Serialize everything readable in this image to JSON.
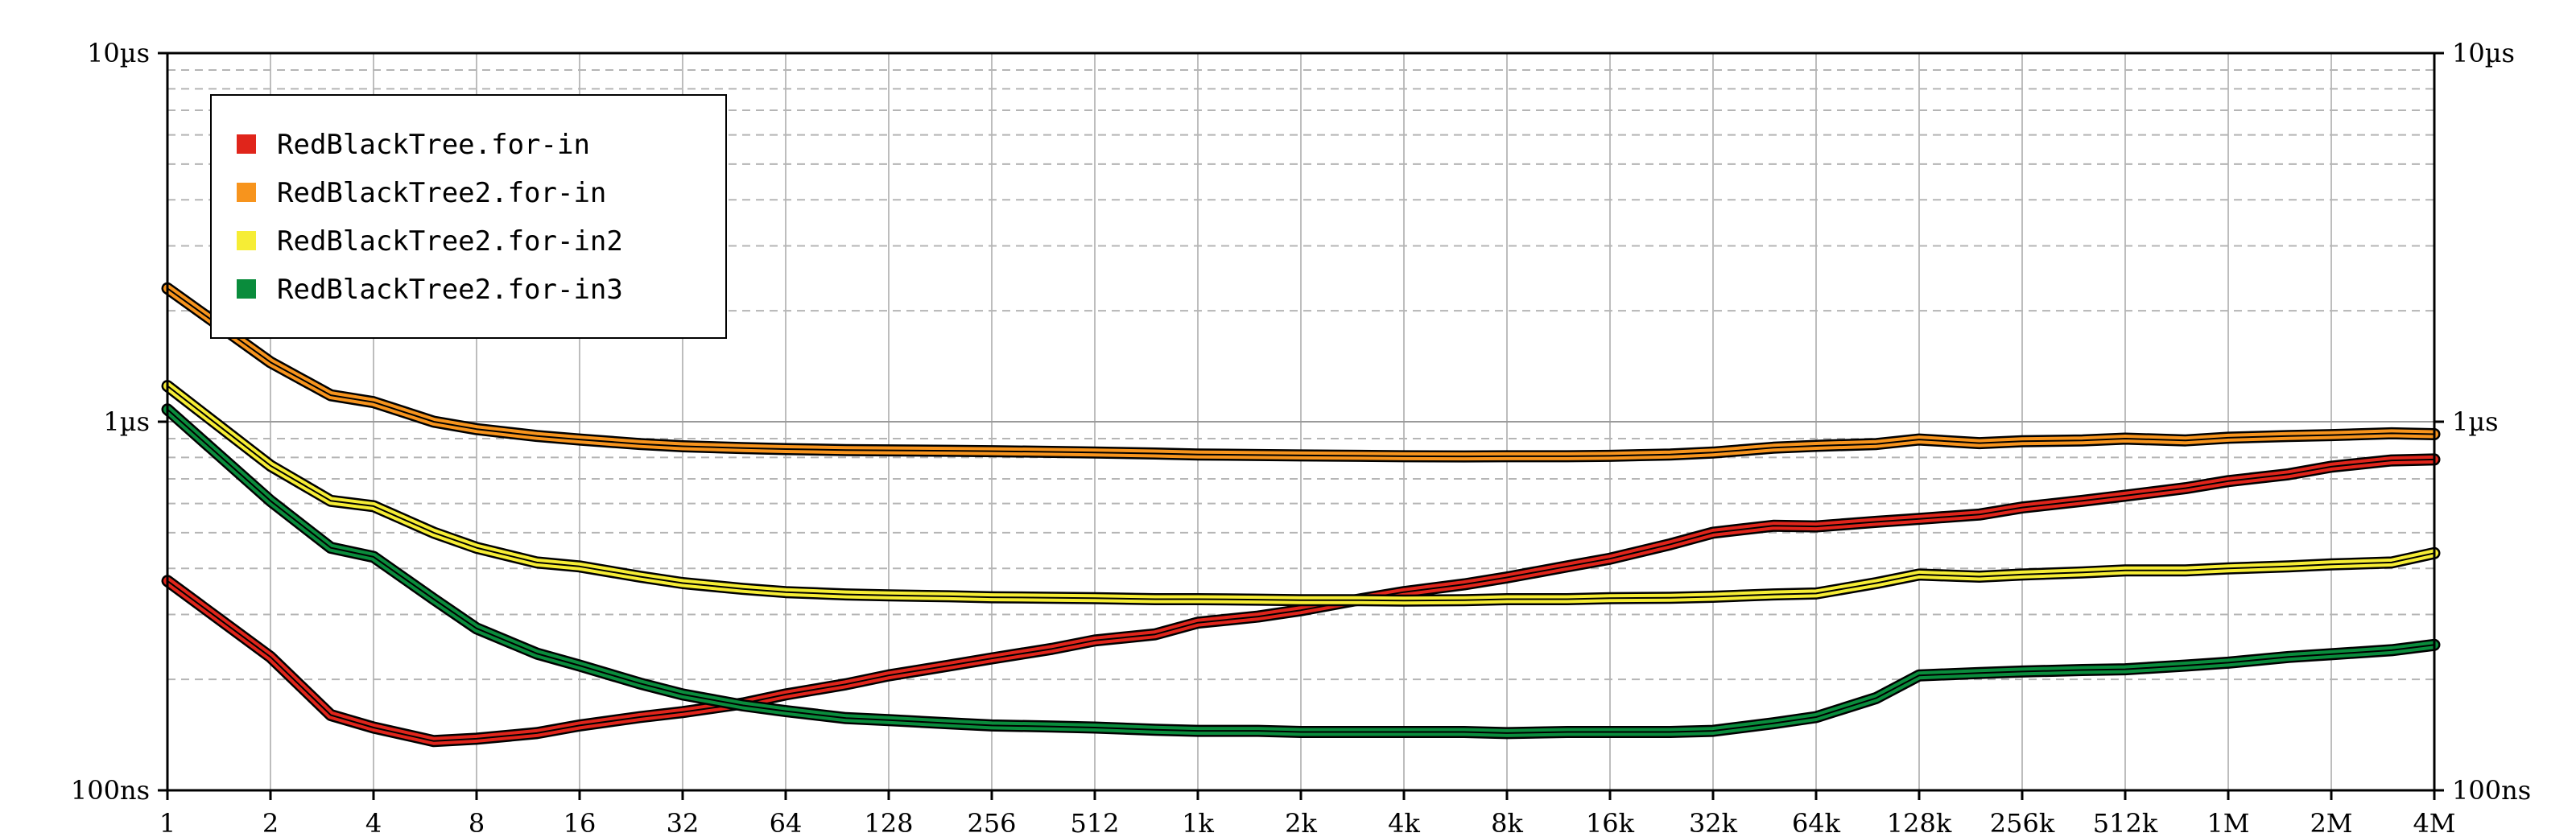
{
  "chart_data": {
    "type": "line",
    "title": "",
    "xlabel": "",
    "ylabel": "",
    "x_scale": "log2",
    "y_scale": "log10",
    "x_ticks": [
      "1",
      "2",
      "4",
      "8",
      "16",
      "32",
      "64",
      "128",
      "256",
      "512",
      "1k",
      "2k",
      "4k",
      "8k",
      "16k",
      "32k",
      "64k",
      "128k",
      "256k",
      "512k",
      "1M",
      "2M",
      "4M"
    ],
    "x_tick_values": [
      1,
      2,
      4,
      8,
      16,
      32,
      64,
      128,
      256,
      512,
      1024,
      2048,
      4096,
      8192,
      16384,
      32768,
      65536,
      131072,
      262144,
      524288,
      1048576,
      2097152,
      4194304
    ],
    "y_ticks_left": [
      "10µs",
      "1µs",
      "100ns"
    ],
    "y_ticks_right": [
      "10µs",
      "1µs",
      "100ns"
    ],
    "y_tick_values_ns": [
      10000,
      1000,
      100
    ],
    "ylim_ns": [
      100,
      10000
    ],
    "xlim": [
      1,
      4194304
    ],
    "grid": true,
    "legend_position": "top-left",
    "series": [
      {
        "name": "RedBlackTree.for-in",
        "color": "#e0251b",
        "x": [
          1,
          2,
          3,
          4,
          6,
          8,
          12,
          16,
          24,
          32,
          48,
          64,
          96,
          128,
          192,
          256,
          384,
          512,
          768,
          1024,
          1536,
          2048,
          3072,
          4096,
          6144,
          8192,
          12288,
          16384,
          24576,
          32768,
          49152,
          65536,
          98304,
          131072,
          196608,
          262144,
          393216,
          524288,
          786432,
          1048576,
          1572864,
          2097152,
          3145728,
          4194304
        ],
        "values": [
          370,
          230,
          160,
          148,
          136,
          138,
          143,
          150,
          158,
          163,
          172,
          182,
          194,
          205,
          218,
          228,
          242,
          255,
          265,
          285,
          296,
          308,
          330,
          345,
          362,
          378,
          405,
          425,
          465,
          500,
          522,
          520,
          535,
          545,
          560,
          585,
          610,
          630,
          660,
          690,
          720,
          755,
          785,
          790
        ]
      },
      {
        "name": "RedBlackTree2.for-in",
        "color": "#f7941d",
        "x": [
          1,
          2,
          3,
          4,
          6,
          8,
          12,
          16,
          24,
          32,
          48,
          64,
          96,
          128,
          192,
          256,
          384,
          512,
          768,
          1024,
          1536,
          2048,
          3072,
          4096,
          6144,
          8192,
          12288,
          16384,
          24576,
          32768,
          49152,
          65536,
          98304,
          131072,
          196608,
          262144,
          393216,
          524288,
          786432,
          1048576,
          1572864,
          2097152,
          3145728,
          4194304
        ],
        "values": [
          2300,
          1450,
          1180,
          1130,
          1000,
          955,
          915,
          895,
          870,
          858,
          848,
          843,
          838,
          836,
          834,
          832,
          828,
          825,
          820,
          815,
          812,
          810,
          808,
          806,
          805,
          806,
          806,
          808,
          815,
          825,
          850,
          860,
          870,
          895,
          875,
          885,
          890,
          900,
          890,
          905,
          915,
          920,
          930,
          925
        ]
      },
      {
        "name": "RedBlackTree2.for-in2",
        "color": "#f6ed35",
        "x": [
          1,
          2,
          3,
          4,
          6,
          8,
          12,
          16,
          24,
          32,
          48,
          64,
          96,
          128,
          192,
          256,
          384,
          512,
          768,
          1024,
          1536,
          2048,
          3072,
          4096,
          6144,
          8192,
          12288,
          16384,
          24576,
          32768,
          49152,
          65536,
          98304,
          131072,
          196608,
          262144,
          393216,
          524288,
          786432,
          1048576,
          1572864,
          2097152,
          3145728,
          4194304
        ],
        "values": [
          1250,
          760,
          610,
          590,
          500,
          455,
          415,
          405,
          380,
          365,
          352,
          345,
          340,
          338,
          336,
          334,
          333,
          332,
          330,
          330,
          329,
          328,
          328,
          327,
          328,
          330,
          330,
          332,
          333,
          335,
          340,
          342,
          365,
          385,
          380,
          385,
          390,
          395,
          395,
          400,
          405,
          410,
          415,
          440
        ]
      },
      {
        "name": "RedBlackTree2.for-in3",
        "color": "#0a8c3c",
        "x": [
          1,
          2,
          3,
          4,
          6,
          8,
          12,
          16,
          24,
          32,
          48,
          64,
          96,
          128,
          192,
          256,
          384,
          512,
          768,
          1024,
          1536,
          2048,
          3072,
          4096,
          6144,
          8192,
          12288,
          16384,
          24576,
          32768,
          49152,
          65536,
          98304,
          131072,
          196608,
          262144,
          393216,
          524288,
          786432,
          1048576,
          1572864,
          2097152,
          3145728,
          4194304
        ],
        "values": [
          1080,
          610,
          455,
          430,
          330,
          275,
          235,
          218,
          195,
          182,
          170,
          164,
          157,
          155,
          152,
          150,
          149,
          148,
          146,
          145,
          145,
          144,
          144,
          144,
          144,
          143,
          144,
          144,
          144,
          145,
          152,
          158,
          178,
          205,
          208,
          210,
          212,
          213,
          218,
          222,
          230,
          234,
          240,
          248
        ]
      }
    ]
  }
}
